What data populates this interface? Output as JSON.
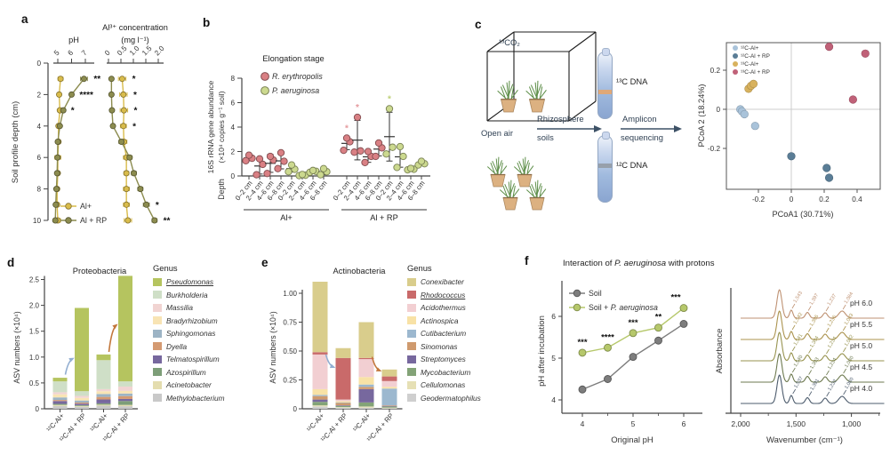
{
  "panels": {
    "a": "a",
    "b": "b",
    "c": "c",
    "d": "d",
    "e": "e",
    "f": "f"
  },
  "panel_c": {
    "chamber": "¹³CO₂",
    "open_air": "Open air",
    "arrow1_line1": "Rhizosphere",
    "arrow1_line2": "soils",
    "arrow2_line1": "Amplicon",
    "arrow2_line2": "sequencing",
    "tube_top": "¹³C DNA",
    "tube_bottom": "¹²C DNA"
  },
  "panel_f": {
    "title_pre": "Interaction of ",
    "title_species": "P. aeruginosa",
    "title_post": " with protons"
  },
  "chart_data": [
    {
      "id": "a",
      "type": "depth-profile",
      "ylabel": "Soil profile depth (cm)",
      "yticks": [
        0,
        2,
        4,
        6,
        8,
        10
      ],
      "depths": [
        1,
        2,
        3,
        4,
        5,
        6,
        7,
        8,
        9,
        10
      ],
      "legend": [
        {
          "label": "Al+",
          "color": "#d9bc4b"
        },
        {
          "label": "Al + RP",
          "color": "#8c8c4f"
        }
      ],
      "subplots": [
        {
          "title_lines": [
            "pH"
          ],
          "ticks": [
            5,
            6,
            7
          ],
          "tick_labels": [
            "5",
            "6",
            "7"
          ],
          "series": [
            {
              "name": "Al+",
              "color": "#d9bc4b",
              "values": [
                5.2,
                5.1,
                5.15,
                5.05,
                5.05,
                5.0,
                5.0,
                4.95,
                4.95,
                5.0
              ],
              "err": [
                0.18,
                0.12,
                0.12,
                0.1,
                0.12,
                0.22,
                0.12,
                0.15,
                0.15,
                0.2
              ]
            },
            {
              "name": "Al + RP",
              "color": "#8c8c4f",
              "values": [
                6.9,
                6.0,
                5.4,
                5.15,
                5.0,
                4.98,
                4.95,
                4.9,
                4.85,
                4.82
              ],
              "err": [
                0.25,
                0.12,
                0.1,
                0.08,
                0.06,
                0.06,
                0.06,
                0.06,
                0.06,
                0.08
              ]
            }
          ],
          "sig": [
            {
              "depth": 1,
              "text": "**"
            },
            {
              "depth": 2,
              "text": "****"
            },
            {
              "depth": 3,
              "text": "*"
            }
          ]
        },
        {
          "title_lines": [
            "Al³⁺ concentration",
            "(mg l⁻¹)"
          ],
          "ticks": [
            0,
            0.5,
            1.0,
            1.5,
            2.0
          ],
          "tick_labels": [
            "0",
            "0.5",
            "1.0",
            "1.5",
            "2.0"
          ],
          "series": [
            {
              "name": "Al+",
              "color": "#d9bc4b",
              "values": [
                0.55,
                0.6,
                0.62,
                0.6,
                0.62,
                0.72,
                0.72,
                0.72,
                0.72,
                0.78
              ],
              "err": [
                0.15,
                0.15,
                0.15,
                0.12,
                0.12,
                0.12,
                0.1,
                0.12,
                0.12,
                0.15
              ]
            },
            {
              "name": "Al + RP",
              "color": "#8c8c4f",
              "values": [
                0.12,
                0.12,
                0.14,
                0.18,
                0.52,
                0.85,
                1.02,
                1.28,
                1.52,
                1.85
              ],
              "err": [
                0.05,
                0.05,
                0.05,
                0.06,
                0.1,
                0.1,
                0.1,
                0.1,
                0.12,
                0.1
              ]
            }
          ],
          "sig": [
            {
              "depth": 1,
              "text": "*"
            },
            {
              "depth": 2,
              "text": "*"
            },
            {
              "depth": 3,
              "text": "*"
            },
            {
              "depth": 4,
              "text": "*"
            },
            {
              "depth": 9,
              "text": "*"
            },
            {
              "depth": 10,
              "text": "**"
            }
          ]
        }
      ]
    },
    {
      "id": "b",
      "type": "jitter",
      "title": "Elongation stage",
      "ylabel_lines": [
        "16S rRNA gene abundance",
        "(×10⁴ copies g⁻¹ soil)"
      ],
      "xlabel": "Depth",
      "yticks": [
        0,
        2,
        4,
        6,
        8
      ],
      "depth_labels": [
        "0–2 cm",
        "2–4 cm",
        "4–6 cm",
        "6–8 cm"
      ],
      "legend": [
        {
          "label": "R. erythropolis",
          "color": "#d98084",
          "sig_color": "#e59a9d"
        },
        {
          "label": "P. aeruginosa",
          "color": "#ccd98f",
          "sig_color": "#bed077"
        }
      ],
      "groups": [
        {
          "label": "Al+",
          "species": [
            {
              "clusters": [
                [
                  1.25,
                  1.45,
                  1.7
                ],
                [
                  0.1,
                  0.95,
                  1.4
                ],
                [
                  0.2,
                  1.3,
                  1.6
                ],
                [
                  0.6,
                  1.2,
                  1.9
                ]
              ],
              "sig": [
                null,
                null,
                null,
                null
              ]
            },
            {
              "clusters": [
                [
                  0.35,
                  0.55,
                  0.9
                ],
                [
                  0.03,
                  0.06,
                  0.12
                ],
                [
                  0.3,
                  0.38,
                  0.45
                ],
                [
                  0.1,
                  0.35,
                  0.6
                ]
              ],
              "sig": [
                null,
                null,
                null,
                null
              ]
            }
          ]
        },
        {
          "label": "Al + RP",
          "species": [
            {
              "clusters": [
                [
                  2.1,
                  2.8,
                  3.1
                ],
                [
                  1.95,
                  2.05,
                  4.8
                ],
                [
                  1.1,
                  1.6,
                  2.0
                ],
                [
                  1.6,
                  2.3,
                  2.7
                ]
              ],
              "sig": [
                "*",
                "*",
                null,
                null
              ]
            },
            {
              "clusters": [
                [
                  1.8,
                  2.35,
                  5.5
                ],
                [
                  0.7,
                  1.6,
                  2.4
                ],
                [
                  0.5,
                  0.55,
                  0.62
                ],
                [
                  0.9,
                  1.0,
                  1.2
                ]
              ],
              "sig": [
                "*",
                null,
                null,
                null
              ]
            }
          ]
        }
      ]
    },
    {
      "id": "pcoa",
      "type": "scatter",
      "xlabel": "PCoA1 (30.71%)",
      "ylabel": "PCoA 2 (18.24%)",
      "xticks": [
        -0.2,
        0,
        0.2,
        0.4
      ],
      "xtick_labels": [
        "-0.2",
        "0",
        "0.2",
        "0.4"
      ],
      "yticks": [
        -0.2,
        0,
        0.2
      ],
      "ytick_labels": [
        "-0.2",
        "0",
        "0.2"
      ],
      "series": [
        {
          "name": "¹²C-Al+",
          "color": "#a9c3da",
          "points": [
            [
              -0.31,
              0.0
            ],
            [
              -0.3,
              -0.01
            ],
            [
              -0.285,
              -0.025
            ],
            [
              -0.22,
              -0.085
            ]
          ]
        },
        {
          "name": "¹²C-Al + RP",
          "color": "#5a7d96",
          "points": [
            [
              0.0,
              -0.24
            ],
            [
              0.215,
              -0.3
            ],
            [
              0.23,
              -0.35
            ]
          ]
        },
        {
          "name": "¹³C-Al+",
          "color": "#d8b25e",
          "points": [
            [
              -0.26,
              0.105
            ],
            [
              -0.245,
              0.12
            ],
            [
              -0.23,
              0.13
            ]
          ]
        },
        {
          "name": "¹³C-Al + RP",
          "color": "#c06178",
          "points": [
            [
              0.23,
              0.32
            ],
            [
              0.45,
              0.285
            ],
            [
              0.375,
              0.05
            ]
          ]
        }
      ]
    },
    {
      "id": "d",
      "type": "stacked-bar",
      "title": "Proteobacteria",
      "ylabel": "ASV numbers (×10⁴)",
      "yticks": [
        0,
        0.5,
        1.0,
        1.5,
        2.0,
        2.5
      ],
      "ytick_labels": [
        "0",
        "0.5",
        "1.0",
        "1.5",
        "2.0",
        "2.5"
      ],
      "legend_title": "Genus",
      "genera": [
        {
          "name": "Pseudomonas",
          "color": "#b5c45f",
          "underline": true
        },
        {
          "name": "Burkholderia",
          "color": "#cfdfc7"
        },
        {
          "name": "Massilia",
          "color": "#f1d4d2"
        },
        {
          "name": "Bradyrhizobium",
          "color": "#f8e4b4"
        },
        {
          "name": "Sphingomonas",
          "color": "#9db4c5"
        },
        {
          "name": "Dyella",
          "color": "#d49a72"
        },
        {
          "name": "Telmatospirillum",
          "color": "#77689e"
        },
        {
          "name": "Azospirillum",
          "color": "#7d9e78"
        },
        {
          "name": "Acinetobacter",
          "color": "#e4ddaf"
        },
        {
          "name": "Methylobacterium",
          "color": "#c9c9c9"
        }
      ],
      "categories": [
        "¹²C-Al+",
        "¹²C-Al + RP",
        "¹³C-Al+",
        "¹³C-Al + RP"
      ],
      "bars": [
        {
          "values": [
            0.07,
            0.21,
            0.04,
            0.06,
            0.05,
            0.02,
            0.055,
            0.02,
            0.02,
            0.055
          ]
        },
        {
          "values": [
            1.61,
            0.09,
            0.04,
            0.05,
            0.04,
            0.02,
            0.03,
            0.015,
            0.015,
            0.04
          ]
        },
        {
          "values": [
            0.11,
            0.56,
            0.04,
            0.055,
            0.055,
            0.05,
            0.075,
            0.025,
            0.02,
            0.06
          ]
        },
        {
          "values": [
            2.04,
            0.1,
            0.085,
            0.05,
            0.05,
            0.055,
            0.04,
            0.075,
            0.025,
            0.05
          ]
        }
      ],
      "arrows": [
        {
          "color": "#92aed1",
          "from_bar": 0,
          "from_y": 0.66,
          "to_bar": 1,
          "to_y": 0.97
        },
        {
          "color": "#c2773b",
          "from_bar": 2,
          "from_y": 1.1,
          "to_bar": 3,
          "to_y": 1.62
        }
      ]
    },
    {
      "id": "e",
      "type": "stacked-bar",
      "title": "Actinobacteria",
      "ylabel": "ASV numbers (×10⁴)",
      "yticks": [
        0,
        0.25,
        0.5,
        0.75,
        1.0
      ],
      "ytick_labels": [
        "0",
        "0.25",
        "0.50",
        "0.75",
        "1.00"
      ],
      "legend_title": "Genus",
      "genera": [
        {
          "name": "Conexibacter",
          "color": "#d9cd8c"
        },
        {
          "name": "Rhodococcus",
          "color": "#c96a6a",
          "underline": true
        },
        {
          "name": "Acidothermus",
          "color": "#f2cfd2"
        },
        {
          "name": "Actinospica",
          "color": "#f8e2a6"
        },
        {
          "name": "Cutibacterium",
          "color": "#9cb8cf"
        },
        {
          "name": "Sinomonas",
          "color": "#cf9a6e"
        },
        {
          "name": "Streptomyces",
          "color": "#77689e"
        },
        {
          "name": "Mycobacterium",
          "color": "#83a377"
        },
        {
          "name": "Cellulomonas",
          "color": "#e6e0b5"
        },
        {
          "name": "Geodermatophilus",
          "color": "#cfcfcf"
        }
      ],
      "categories": [
        "¹²C-Al+",
        "¹²C-Al + RP",
        "¹³C-Al+",
        "¹³C-Al + RP"
      ],
      "bars": [
        {
          "values": [
            0.61,
            0.02,
            0.3,
            0.05,
            0.01,
            0.03,
            0.02,
            0.03,
            0.01,
            0.02
          ]
        },
        {
          "values": [
            0.085,
            0.36,
            0.015,
            0.01,
            0.005,
            0.02,
            0.005,
            0.01,
            0.005,
            0.01
          ]
        },
        {
          "values": [
            0.31,
            0.01,
            0.155,
            0.065,
            0.02,
            0.02,
            0.115,
            0.035,
            0.01,
            0.01
          ]
        },
        {
          "values": [
            0.06,
            0.04,
            0.05,
            0.015,
            0.145,
            0.005,
            0.005,
            0.01,
            0.005,
            0.005
          ]
        }
      ],
      "arrows": [
        {
          "color": "#92aed1",
          "from_bar": 0,
          "from_y": 0.47,
          "to_bar": 1,
          "to_y": 0.36
        },
        {
          "color": "#c2773b",
          "from_bar": 2,
          "from_y": 0.45,
          "to_bar": 3,
          "to_y": 0.33
        }
      ]
    },
    {
      "id": "f_line",
      "type": "line",
      "xlabel": "Original pH",
      "ylabel": "pH after incubation",
      "x": [
        4,
        4.5,
        5,
        5.5,
        6
      ],
      "xticks": [
        4,
        5,
        6
      ],
      "yticks": [
        4,
        5,
        6
      ],
      "series": [
        {
          "parts": [
            {
              "t": "Soil"
            }
          ],
          "color": "#7d7d7d",
          "values": [
            4.25,
            4.5,
            5.03,
            5.42,
            5.82
          ]
        },
        {
          "parts": [
            {
              "t": "Soil + "
            },
            {
              "t": "P. aeruginosa",
              "i": true
            }
          ],
          "color": "#b6c86b",
          "values": [
            5.13,
            5.25,
            5.6,
            5.73,
            6.2
          ],
          "sig": [
            "***",
            "****",
            "***",
            "**",
            "***"
          ]
        }
      ]
    },
    {
      "id": "f_spectra",
      "type": "spectra",
      "xlabel": "Wavenumber (cm⁻¹)",
      "ylabel": "Absorbance",
      "xticks": [
        2000,
        1500,
        1000
      ],
      "xtick_labels": [
        "2,000",
        "1,500",
        "1,000"
      ],
      "main_peak": 1650,
      "curves": [
        {
          "label": "pH 6.0",
          "color": "#bf9273",
          "peaks": [
            "1,543",
            "1,397",
            "1,237",
            "1,084"
          ]
        },
        {
          "label": "pH 5.5",
          "color": "#ab934e",
          "peaks": [
            "1,542",
            "1,396",
            "1,236",
            "1,083"
          ]
        },
        {
          "label": "pH 5.0",
          "color": "#97934f",
          "peaks": [
            "1,541",
            "1,394",
            "1,234",
            "1,082"
          ]
        },
        {
          "label": "pH 4.5",
          "color": "#6e7a50",
          "peaks": [
            "1,540",
            "1,393",
            "1,234",
            "1,080"
          ]
        },
        {
          "label": "pH 4.0",
          "color": "#4d5c6d",
          "peaks": [
            "1,537",
            "1,391",
            "1,232",
            "1,080"
          ]
        }
      ]
    }
  ]
}
